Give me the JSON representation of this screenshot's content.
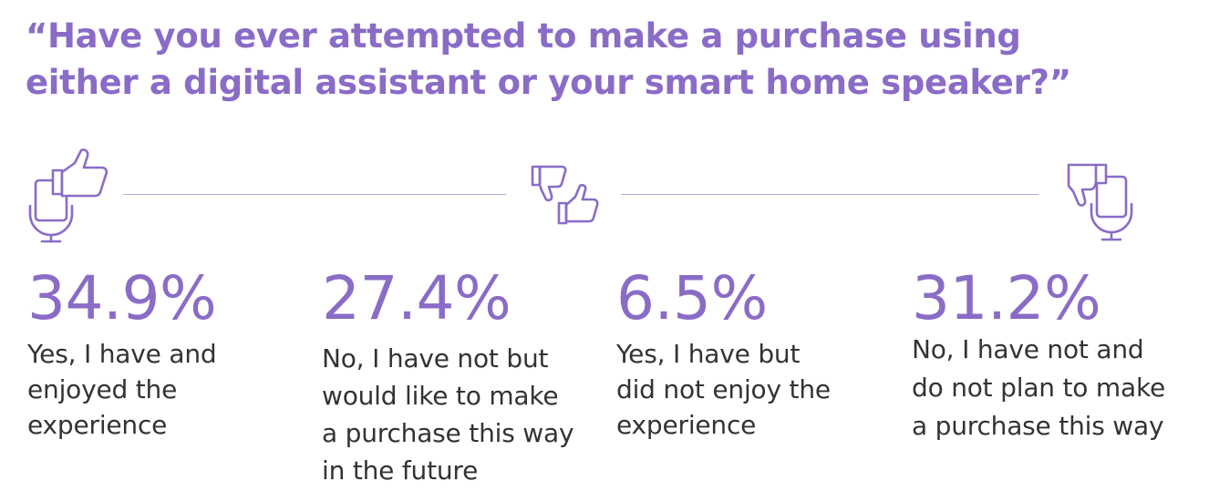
{
  "title_lines": [
    "“Have you ever attempted to make a purchase using",
    "either a digital assistant or your smart home speaker?”"
  ],
  "colors": {
    "accent": "#8a6cc7",
    "rule": "#b9a7de",
    "text": "#333333"
  },
  "icons": {
    "left": "thumbs-up-smartphone-icon",
    "middle": "thumbs-down-and-thumbs-up-icon",
    "right": "thumbs-down-smartphone-icon"
  },
  "chart_data": {
    "type": "table",
    "title": "“Have you ever attempted to make a purchase using either a digital assistant or your smart home speaker?”",
    "unit": "%",
    "items": [
      {
        "value": 34.9,
        "value_label": "34.9%",
        "desc_lines": [
          "Yes, I have and",
          "enjoyed the",
          "experience"
        ]
      },
      {
        "value": 27.4,
        "value_label": "27.4%",
        "desc_lines": [
          "No, I have not but",
          "would like to make",
          "a purchase this way",
          "in the future"
        ]
      },
      {
        "value": 6.5,
        "value_label": "6.5%",
        "desc_lines": [
          "Yes, I have but",
          "did not enjoy the",
          "experience"
        ]
      },
      {
        "value": 31.2,
        "value_label": "31.2%",
        "desc_lines": [
          "No, I have not and",
          "do not plan to make",
          "a purchase this way"
        ]
      }
    ]
  }
}
